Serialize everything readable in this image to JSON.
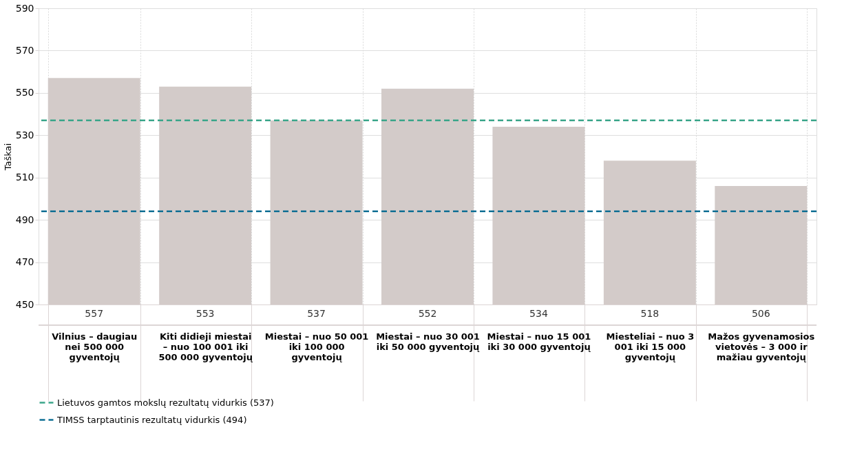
{
  "chart_data": {
    "type": "bar",
    "ylabel": "Taškai",
    "categories": [
      "Vilnius – daugiau nei 500 000 gyventojų",
      "Kiti didieji miestai – nuo 100 001 iki 500 000 gyventojų",
      "Miestai – nuo 50 001 iki 100 000 gyventojų",
      "Miestai – nuo 30 001 iki 50 000 gyventojų",
      "Miestai – nuo 15 001 iki 30 000 gyventojų",
      "Miesteliai – nuo 3 001 iki 15 000 gyventojų",
      "Mažos gyvenamosios vietovės – 3 000 ir mažiau gyventojų"
    ],
    "values": [
      557,
      553,
      537,
      552,
      534,
      518,
      506
    ],
    "color": "#d3cbc9",
    "ylim": [
      450,
      590
    ],
    "yticks": [
      450,
      470,
      490,
      510,
      530,
      550,
      570,
      590
    ],
    "grid": true,
    "data_labels": true,
    "legend": "bottom left",
    "ref_lines": [
      {
        "axis": "y",
        "value": 537,
        "label": "Lietuvos gamtos mokslų rezultatų vidurkis (537)",
        "color": "#3aa58a",
        "line_style": "dashed"
      },
      {
        "axis": "y",
        "value": 494,
        "label": "TIMSS tarptautinis rezultatų vidurkis (494)",
        "color": "#0e6f94",
        "line_style": "dashed"
      }
    ]
  }
}
